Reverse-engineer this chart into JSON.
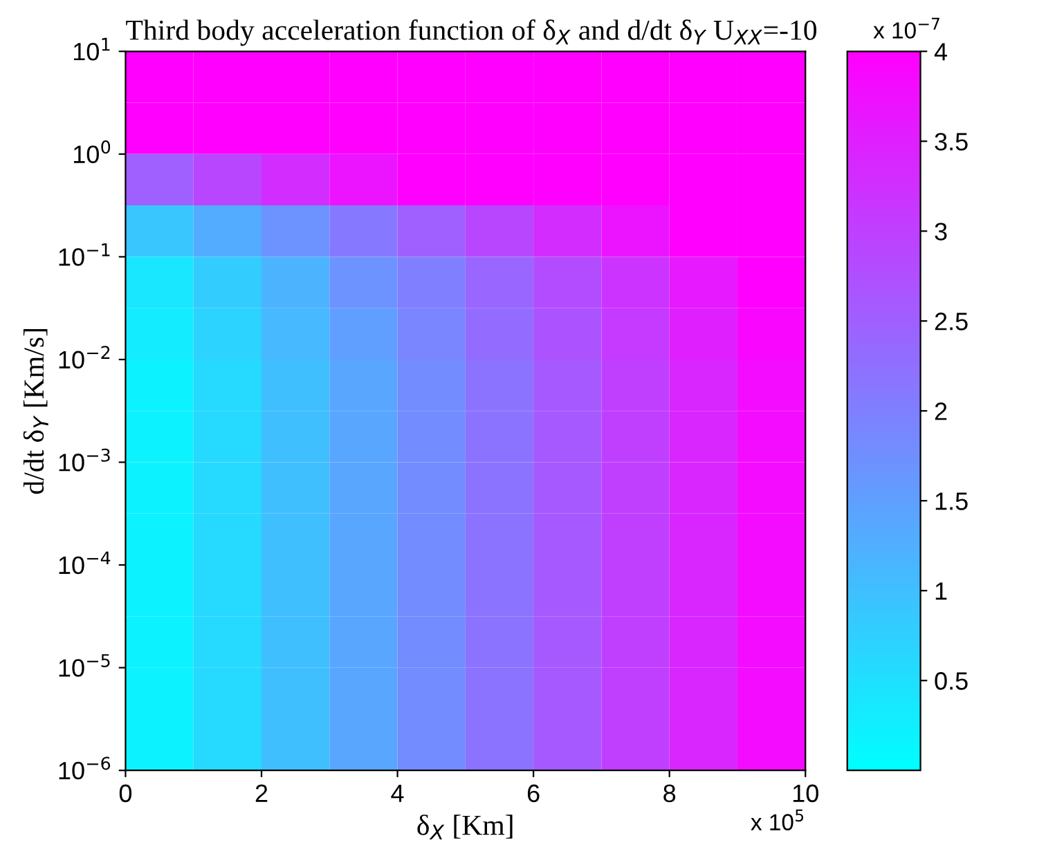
{
  "chart_data": {
    "type": "heatmap",
    "title": "Third body acceleration function of δ$_{X}$ and d/dt δ$_{Y}$ U$_{XX}$=-10",
    "xlabel": "δ$_{X}$ [Km]",
    "ylabel": "d/dt δ$_{Y}$ [Km/s]",
    "x": [
      0.5,
      1.5,
      2.5,
      3.5,
      4.5,
      5.5,
      6.5,
      7.5,
      8.5,
      9.5
    ],
    "xlim": [
      0,
      10
    ],
    "xticks": [
      0,
      2,
      4,
      6,
      8,
      10
    ],
    "log": "y",
    "ylim": [
      1e-06,
      10
    ],
    "yticks": [
      {
        "value": 1e-06,
        "label": "10$^{−6}$"
      },
      {
        "value": 1e-05,
        "label": "10$^{−5}$"
      },
      {
        "value": 0.0001,
        "label": "10$^{−4}$"
      },
      {
        "value": 0.001,
        "label": "10$^{−3}$"
      },
      {
        "value": 0.01,
        "label": "10$^{−2}$"
      },
      {
        "value": 0.1,
        "label": "10$^{−1}$"
      },
      {
        "value": 1,
        "label": "10$^{0}$"
      },
      {
        "value": 10,
        "label": "10$^{1}$"
      }
    ],
    "cells": [
      [
        4,
        4,
        4,
        4,
        4,
        4,
        4,
        4,
        4,
        4
      ],
      [
        4,
        4,
        4,
        4,
        4,
        4,
        4,
        4,
        4,
        4
      ],
      [
        2.5,
        2.9,
        3.3,
        3.7,
        4,
        4,
        4,
        4,
        4,
        4
      ],
      [
        0.9,
        1.3,
        1.7,
        2.1,
        2.5,
        2.9,
        3.3,
        3.7,
        4,
        4
      ],
      [
        0.4,
        0.8,
        1.2,
        1.7,
        2.0,
        2.4,
        2.8,
        3.2,
        3.6,
        4
      ],
      [
        0.3,
        0.7,
        1.1,
        1.5,
        1.9,
        2.3,
        2.7,
        3.1,
        3.5,
        3.9
      ],
      [
        0.2,
        0.6,
        1.0,
        1.4,
        1.8,
        2.2,
        2.6,
        3.0,
        3.4,
        3.8
      ],
      [
        0.2,
        0.6,
        1.0,
        1.4,
        1.8,
        2.2,
        2.6,
        3.0,
        3.4,
        3.8
      ],
      [
        0.2,
        0.6,
        1.0,
        1.4,
        1.8,
        2.2,
        2.6,
        3.0,
        3.4,
        3.8
      ],
      [
        0.2,
        0.6,
        1.0,
        1.4,
        1.8,
        2.2,
        2.6,
        3.0,
        3.4,
        3.8
      ],
      [
        0.2,
        0.6,
        1.0,
        1.4,
        1.8,
        2.2,
        2.6,
        3.0,
        3.4,
        3.8
      ],
      [
        0.2,
        0.6,
        1.0,
        1.4,
        1.8,
        2.2,
        2.6,
        3.0,
        3.4,
        3.8
      ],
      [
        0.2,
        0.6,
        1.0,
        1.4,
        1.8,
        2.2,
        2.6,
        3.0,
        3.4,
        3.8
      ],
      [
        0.2,
        0.6,
        1.0,
        1.4,
        1.8,
        2.2,
        2.6,
        3.0,
        3.4,
        3.8
      ]
    ],
    "clim": [
      0,
      4
    ],
    "cticks": [
      0.5,
      1,
      1.5,
      2,
      2.5,
      3,
      3.5,
      4
    ],
    "annotations": [
      "x 10$^{5}$",
      "x 10$^{−7}$"
    ]
  }
}
